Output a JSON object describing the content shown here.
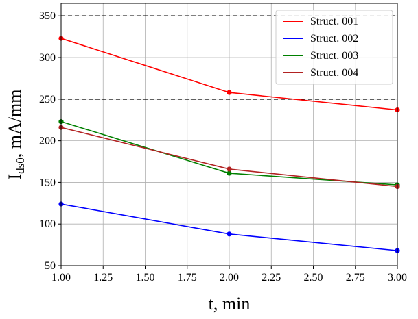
{
  "chart_data": {
    "type": "line",
    "xlabel": "t, min",
    "ylabel_main": "I",
    "ylabel_sub": "ds0",
    "ylabel_unit": ", mA/mm",
    "xlim": [
      1.0,
      3.0
    ],
    "ylim": [
      50,
      365
    ],
    "xticks": [
      1.0,
      1.25,
      1.5,
      1.75,
      2.0,
      2.25,
      2.5,
      2.75,
      3.0
    ],
    "xtick_labels": [
      "1.00",
      "1.25",
      "1.50",
      "1.75",
      "2.00",
      "2.25",
      "2.50",
      "2.75",
      "3.00"
    ],
    "yticks": [
      50,
      100,
      150,
      200,
      250,
      300,
      350
    ],
    "ytick_labels": [
      "50",
      "100",
      "150",
      "200",
      "250",
      "300",
      "350"
    ],
    "grid": true,
    "legend_position": "top-right",
    "reference_lines": [
      {
        "y": 350,
        "style": "dashed",
        "color": "#000000"
      },
      {
        "y": 250,
        "style": "dashed",
        "color": "#000000"
      }
    ],
    "x": [
      1.0,
      2.0,
      3.0
    ],
    "series": [
      {
        "name": "Struct. 001",
        "color": "#ff0000",
        "values": [
          323,
          258,
          237
        ]
      },
      {
        "name": "Struct. 002",
        "color": "#0000ff",
        "values": [
          124,
          88,
          68
        ]
      },
      {
        "name": "Struct. 003",
        "color": "#008000",
        "values": [
          223,
          161,
          147
        ]
      },
      {
        "name": "Struct. 004",
        "color": "#b22222",
        "values": [
          216,
          166,
          145
        ]
      }
    ]
  }
}
